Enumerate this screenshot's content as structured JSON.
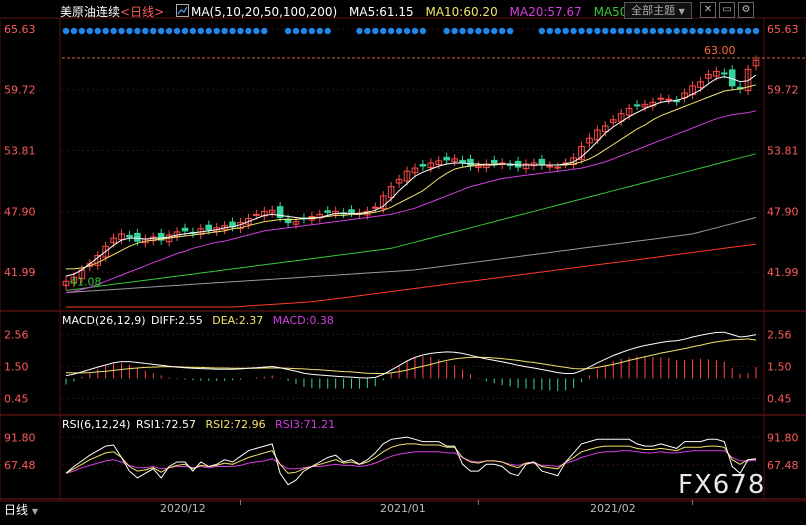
{
  "header": {
    "instrument": "美原油连续",
    "period": "<日线>",
    "ma_label": "MA(5,10,20,50,100,200)",
    "ma5": "MA5:61.15",
    "ma10": "MA10:60.20",
    "ma20": "MA20:57.67",
    "ma50": "MA50",
    "theme_button": "全部主题"
  },
  "colors": {
    "up": "#ff4a4a",
    "down": "#34d39a",
    "ma5": "#ffffff",
    "ma10": "#f2e36b",
    "ma20": "#d23ee0",
    "ma50": "#37c837",
    "ma100": "#9a9a9a",
    "ma200": "#ff3a2a",
    "dot": "#1e88e5",
    "axis_text": "#ff5a5a",
    "grid": "#3b1010"
  },
  "price_axis": {
    "labels": [
      "65.63",
      "59.72",
      "53.81",
      "47.90",
      "41.99"
    ],
    "low_marker": "41.08",
    "high_marker": "63.00"
  },
  "macd": {
    "title": "MACD(26,12,9)",
    "diff": "DIFF:2.55",
    "dea": "DEA:2.37",
    "macd": "MACD:0.38",
    "axis_labels": [
      "2.56",
      "1.50",
      "0.45"
    ]
  },
  "rsi": {
    "title": "RSI(6,12,24)",
    "rsi1": "RSI1:72.57",
    "rsi2": "RSI2:72.96",
    "rsi3": "RSI3:71.21",
    "axis_labels": [
      "91.80",
      "67.48"
    ]
  },
  "time_axis": {
    "labels": [
      "2020/12",
      "2021/01",
      "2021/02"
    ]
  },
  "footer": {
    "tab": "日线",
    "watermark": "FX678"
  },
  "chart_data": {
    "type": "candlestick",
    "ylim": [
      38.5,
      66.5
    ],
    "closes": [
      41.1,
      41.5,
      42.2,
      42.8,
      43.6,
      44.5,
      45.3,
      45.7,
      45.4,
      45.0,
      45.2,
      45.4,
      45.1,
      45.6,
      45.9,
      46.0,
      45.8,
      46.2,
      46.1,
      46.3,
      46.5,
      46.4,
      46.8,
      47.2,
      47.6,
      47.9,
      48.0,
      47.3,
      46.8,
      46.9,
      47.2,
      47.4,
      47.6,
      47.8,
      47.9,
      47.7,
      47.8,
      47.7,
      47.9,
      48.3,
      49.4,
      50.3,
      51.0,
      51.8,
      52.1,
      52.3,
      52.6,
      52.8,
      52.9,
      53.0,
      52.6,
      52.3,
      52.3,
      52.5,
      52.6,
      52.6,
      52.4,
      52.2,
      52.5,
      52.6,
      52.4,
      52.3,
      52.2,
      52.6,
      53.1,
      54.2,
      55.0,
      55.8,
      56.2,
      56.8,
      57.4,
      57.9,
      58.2,
      58.3,
      58.5,
      58.9,
      58.8,
      58.6,
      59.4,
      60.1,
      60.5,
      61.2,
      61.5,
      61.3,
      60.1,
      59.8,
      61.7,
      62.6
    ],
    "ma5": [
      41.6,
      41.8,
      42.2,
      42.8,
      43.4,
      44.0,
      44.6,
      45.1,
      45.3,
      45.3,
      45.2,
      45.3,
      45.3,
      45.4,
      45.6,
      45.7,
      45.8,
      45.9,
      46.0,
      46.1,
      46.3,
      46.4,
      46.6,
      46.9,
      47.2,
      47.5,
      47.6,
      47.5,
      47.4,
      47.3,
      47.2,
      47.2,
      47.3,
      47.5,
      47.7,
      47.7,
      47.7,
      47.7,
      47.8,
      48.0,
      48.4,
      49.1,
      49.9,
      50.6,
      51.3,
      51.7,
      52.0,
      52.3,
      52.5,
      52.6,
      52.6,
      52.5,
      52.5,
      52.4,
      52.4,
      52.5,
      52.5,
      52.4,
      52.4,
      52.4,
      52.4,
      52.4,
      52.4,
      52.5,
      52.7,
      53.2,
      53.9,
      54.7,
      55.5,
      56.1,
      56.6,
      57.1,
      57.5,
      57.9,
      58.2,
      58.5,
      58.6,
      58.7,
      58.9,
      59.3,
      59.7,
      60.3,
      60.8,
      61.0,
      60.8,
      60.5,
      60.6,
      61.15
    ],
    "ma10": [
      42.3,
      42.3,
      42.4,
      42.6,
      42.9,
      43.3,
      43.7,
      44.1,
      44.5,
      44.8,
      45.0,
      45.1,
      45.2,
      45.3,
      45.4,
      45.5,
      45.6,
      45.7,
      45.8,
      45.9,
      46.0,
      46.2,
      46.3,
      46.5,
      46.7,
      46.9,
      47.0,
      47.1,
      47.1,
      47.1,
      47.2,
      47.3,
      47.3,
      47.4,
      47.5,
      47.5,
      47.6,
      47.6,
      47.7,
      47.8,
      48.0,
      48.3,
      48.7,
      49.1,
      49.5,
      49.9,
      50.5,
      51.1,
      51.6,
      52.0,
      52.2,
      52.3,
      52.4,
      52.4,
      52.5,
      52.5,
      52.5,
      52.4,
      52.4,
      52.4,
      52.4,
      52.4,
      52.4,
      52.4,
      52.5,
      52.7,
      53.0,
      53.4,
      53.9,
      54.4,
      54.9,
      55.4,
      55.9,
      56.3,
      56.8,
      57.2,
      57.5,
      57.8,
      58.1,
      58.4,
      58.7,
      59.0,
      59.3,
      59.6,
      59.7,
      59.8,
      60.0,
      60.2
    ],
    "ma20": [
      40.0,
      40.1,
      40.3,
      40.5,
      40.8,
      41.1,
      41.4,
      41.7,
      42.0,
      42.3,
      42.6,
      42.9,
      43.2,
      43.5,
      43.8,
      44.0,
      44.3,
      44.5,
      44.7,
      44.9,
      45.0,
      45.2,
      45.4,
      45.6,
      45.8,
      46.0,
      46.1,
      46.2,
      46.3,
      46.4,
      46.5,
      46.6,
      46.7,
      46.8,
      46.9,
      47.0,
      47.1,
      47.2,
      47.3,
      47.4,
      47.5,
      47.6,
      47.8,
      48.0,
      48.2,
      48.5,
      48.8,
      49.1,
      49.4,
      49.7,
      50.0,
      50.3,
      50.5,
      50.7,
      50.9,
      51.1,
      51.2,
      51.3,
      51.4,
      51.5,
      51.6,
      51.7,
      51.8,
      51.9,
      52.0,
      52.1,
      52.3,
      52.5,
      52.7,
      53.0,
      53.3,
      53.6,
      53.9,
      54.2,
      54.5,
      54.8,
      55.1,
      55.4,
      55.7,
      56.0,
      56.3,
      56.6,
      56.9,
      57.1,
      57.3,
      57.4,
      57.5,
      57.67
    ],
    "ma50": [
      40.2,
      40.3,
      40.4,
      40.5,
      40.6,
      40.7,
      40.8,
      40.9,
      41.0,
      41.1,
      41.2,
      41.3,
      41.4,
      41.5,
      41.6,
      41.7,
      41.8,
      41.9,
      42.0,
      42.1,
      42.2,
      42.3,
      42.4,
      42.5,
      42.6,
      42.7,
      42.8,
      42.9,
      43.0,
      43.1,
      43.2,
      43.3,
      43.4,
      43.5,
      43.6,
      43.7,
      43.8,
      43.9,
      44.0,
      44.1,
      44.2,
      44.3,
      44.5,
      44.7,
      44.9,
      45.1,
      45.3,
      45.5,
      45.7,
      45.9,
      46.1,
      46.3,
      46.5,
      46.7,
      46.9,
      47.1,
      47.3,
      47.5,
      47.7,
      47.9,
      48.1,
      48.3,
      48.5,
      48.7,
      48.9,
      49.1,
      49.3,
      49.5,
      49.7,
      49.9,
      50.1,
      50.3,
      50.5,
      50.7,
      50.9,
      51.1,
      51.3,
      51.5,
      51.7,
      51.9,
      52.1,
      52.3,
      52.5,
      52.7,
      52.9,
      53.1,
      53.3,
      53.5
    ],
    "ma100": [
      40.0,
      40.05,
      40.1,
      40.15,
      40.2,
      40.25,
      40.3,
      40.35,
      40.4,
      40.45,
      40.5,
      40.55,
      40.6,
      40.65,
      40.7,
      40.75,
      40.8,
      40.85,
      40.9,
      40.95,
      41.0,
      41.05,
      41.1,
      41.15,
      41.2,
      41.25,
      41.3,
      41.35,
      41.4,
      41.45,
      41.5,
      41.55,
      41.6,
      41.65,
      41.7,
      41.75,
      41.8,
      41.85,
      41.9,
      41.95,
      42.0,
      42.05,
      42.1,
      42.15,
      42.2,
      42.3,
      42.4,
      42.5,
      42.6,
      42.7,
      42.8,
      42.9,
      43.0,
      43.1,
      43.2,
      43.3,
      43.4,
      43.5,
      43.6,
      43.7,
      43.8,
      43.9,
      44.0,
      44.1,
      44.2,
      44.3,
      44.4,
      44.5,
      44.6,
      44.7,
      44.8,
      44.9,
      45.0,
      45.1,
      45.2,
      45.3,
      45.4,
      45.5,
      45.6,
      45.7,
      45.9,
      46.1,
      46.3,
      46.5,
      46.7,
      46.9,
      47.1,
      47.3
    ],
    "ma200": [
      38.6,
      38.6,
      38.6,
      38.6,
      38.6,
      38.6,
      38.6,
      38.6,
      38.6,
      38.6,
      38.6,
      38.6,
      38.6,
      38.6,
      38.6,
      38.6,
      38.6,
      38.6,
      38.6,
      38.6,
      38.6,
      38.6,
      38.65,
      38.7,
      38.75,
      38.8,
      38.85,
      38.9,
      38.95,
      39.0,
      39.05,
      39.1,
      39.2,
      39.3,
      39.4,
      39.5,
      39.6,
      39.7,
      39.8,
      39.9,
      40.0,
      40.1,
      40.2,
      40.3,
      40.4,
      40.5,
      40.6,
      40.7,
      40.8,
      40.9,
      41.0,
      41.1,
      41.2,
      41.3,
      41.4,
      41.5,
      41.6,
      41.7,
      41.8,
      41.9,
      42.0,
      42.1,
      42.2,
      42.3,
      42.4,
      42.5,
      42.6,
      42.7,
      42.8,
      42.9,
      43.0,
      43.1,
      43.2,
      43.3,
      43.4,
      43.5,
      43.6,
      43.7,
      43.8,
      43.9,
      44.0,
      44.1,
      44.2,
      44.3,
      44.4,
      44.5,
      44.6,
      44.7
    ],
    "macd_diff": [
      1.2,
      1.25,
      1.32,
      1.4,
      1.48,
      1.55,
      1.62,
      1.66,
      1.66,
      1.63,
      1.6,
      1.57,
      1.54,
      1.51,
      1.48,
      1.46,
      1.44,
      1.43,
      1.42,
      1.41,
      1.41,
      1.41,
      1.42,
      1.44,
      1.46,
      1.48,
      1.5,
      1.46,
      1.4,
      1.34,
      1.28,
      1.24,
      1.22,
      1.2,
      1.18,
      1.16,
      1.15,
      1.13,
      1.12,
      1.14,
      1.24,
      1.38,
      1.53,
      1.68,
      1.8,
      1.88,
      1.93,
      1.96,
      1.98,
      1.97,
      1.93,
      1.87,
      1.81,
      1.75,
      1.7,
      1.65,
      1.6,
      1.54,
      1.49,
      1.45,
      1.4,
      1.35,
      1.3,
      1.27,
      1.27,
      1.36,
      1.48,
      1.62,
      1.74,
      1.86,
      1.96,
      2.05,
      2.13,
      2.19,
      2.24,
      2.29,
      2.33,
      2.35,
      2.4,
      2.47,
      2.53,
      2.58,
      2.62,
      2.63,
      2.55,
      2.47,
      2.5,
      2.55
    ],
    "macd_dea": [
      1.3,
      1.29,
      1.29,
      1.3,
      1.32,
      1.34,
      1.37,
      1.4,
      1.43,
      1.45,
      1.47,
      1.48,
      1.49,
      1.49,
      1.49,
      1.48,
      1.47,
      1.47,
      1.46,
      1.45,
      1.45,
      1.44,
      1.44,
      1.44,
      1.44,
      1.45,
      1.45,
      1.45,
      1.44,
      1.43,
      1.42,
      1.4,
      1.39,
      1.37,
      1.35,
      1.33,
      1.32,
      1.3,
      1.28,
      1.27,
      1.27,
      1.29,
      1.33,
      1.38,
      1.45,
      1.51,
      1.57,
      1.64,
      1.7,
      1.75,
      1.78,
      1.8,
      1.8,
      1.8,
      1.78,
      1.76,
      1.73,
      1.7,
      1.66,
      1.63,
      1.59,
      1.55,
      1.51,
      1.47,
      1.43,
      1.42,
      1.43,
      1.47,
      1.52,
      1.57,
      1.63,
      1.7,
      1.76,
      1.82,
      1.88,
      1.94,
      1.99,
      2.04,
      2.09,
      2.15,
      2.2,
      2.26,
      2.31,
      2.35,
      2.38,
      2.39,
      2.41,
      2.37
    ],
    "macd_hist": [
      -0.2,
      -0.1,
      0.06,
      0.2,
      0.32,
      0.42,
      0.5,
      0.52,
      0.46,
      0.36,
      0.26,
      0.18,
      0.1,
      0.04,
      -0.02,
      -0.04,
      -0.06,
      -0.08,
      -0.08,
      -0.08,
      -0.08,
      -0.06,
      -0.04,
      0.0,
      0.04,
      0.06,
      0.1,
      0.02,
      -0.08,
      -0.18,
      -0.28,
      -0.32,
      -0.34,
      -0.34,
      -0.34,
      -0.34,
      -0.34,
      -0.34,
      -0.32,
      -0.26,
      -0.06,
      0.18,
      0.4,
      0.6,
      0.7,
      0.74,
      0.72,
      0.64,
      0.56,
      0.44,
      0.3,
      0.14,
      0.02,
      -0.1,
      -0.16,
      -0.22,
      -0.26,
      -0.32,
      -0.34,
      -0.36,
      -0.38,
      -0.4,
      -0.42,
      -0.4,
      -0.32,
      -0.12,
      0.1,
      0.3,
      0.44,
      0.58,
      0.66,
      0.7,
      0.74,
      0.74,
      0.72,
      0.7,
      0.68,
      0.62,
      0.62,
      0.64,
      0.66,
      0.64,
      0.62,
      0.56,
      0.34,
      0.16,
      0.18,
      0.38
    ],
    "rsi1": [
      60,
      66,
      71,
      76,
      80,
      84,
      85,
      74,
      62,
      56,
      60,
      64,
      56,
      66,
      70,
      70,
      62,
      70,
      66,
      68,
      72,
      70,
      75,
      80,
      82,
      84,
      86,
      60,
      50,
      54,
      62,
      66,
      70,
      74,
      76,
      70,
      72,
      68,
      72,
      78,
      86,
      90,
      91,
      92,
      90,
      88,
      88,
      88,
      84,
      84,
      68,
      62,
      62,
      68,
      68,
      66,
      60,
      58,
      68,
      70,
      62,
      60,
      58,
      70,
      78,
      86,
      88,
      90,
      90,
      90,
      90,
      90,
      86,
      84,
      84,
      86,
      84,
      82,
      88,
      88,
      88,
      90,
      90,
      88,
      66,
      60,
      72,
      72.57
    ],
    "rsi2": [
      60,
      64,
      68,
      72,
      75,
      78,
      79,
      74,
      66,
      62,
      63,
      65,
      61,
      65,
      67,
      68,
      64,
      67,
      66,
      67,
      69,
      68,
      71,
      74,
      76,
      78,
      80,
      68,
      60,
      61,
      64,
      66,
      68,
      70,
      72,
      69,
      70,
      68,
      70,
      74,
      79,
      83,
      85,
      86,
      86,
      85,
      85,
      85,
      83,
      83,
      74,
      70,
      69,
      71,
      71,
      70,
      67,
      65,
      69,
      70,
      66,
      65,
      64,
      70,
      74,
      79,
      81,
      83,
      84,
      84,
      84,
      84,
      82,
      81,
      81,
      82,
      81,
      80,
      83,
      83,
      83,
      84,
      84,
      83,
      72,
      68,
      72,
      72.96
    ],
    "rsi3": [
      60,
      62,
      65,
      67,
      69,
      71,
      72,
      70,
      67,
      65,
      65,
      66,
      64,
      65,
      66,
      66,
      65,
      66,
      65,
      66,
      66,
      66,
      67,
      69,
      70,
      71,
      73,
      68,
      64,
      64,
      65,
      66,
      66,
      67,
      68,
      67,
      67,
      66,
      67,
      69,
      72,
      75,
      77,
      78,
      79,
      79,
      79,
      79,
      78,
      78,
      74,
      71,
      70,
      71,
      71,
      70,
      68,
      67,
      69,
      69,
      67,
      67,
      66,
      69,
      71,
      74,
      76,
      78,
      79,
      79,
      80,
      80,
      79,
      78,
      78,
      79,
      78,
      78,
      79,
      80,
      80,
      80,
      80,
      80,
      74,
      71,
      71,
      71.21
    ]
  }
}
